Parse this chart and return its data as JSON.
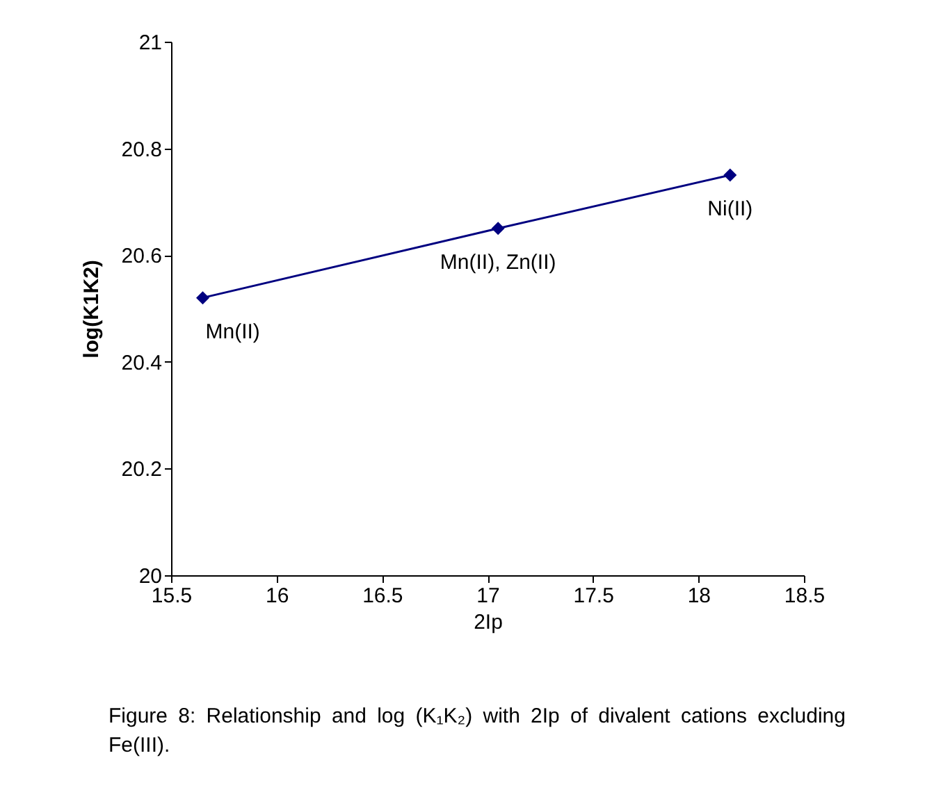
{
  "chart_data": {
    "type": "line",
    "xlabel": "2Ip",
    "ylabel": "log(K1K2)",
    "x": [
      15.65,
      17.05,
      18.15
    ],
    "series": [
      {
        "color": "#000080",
        "values": [
          20.52,
          20.65,
          20.75
        ]
      }
    ],
    "xlim": [
      15.5,
      18.5
    ],
    "xticks": [
      15.5,
      16,
      16.5,
      17,
      17.5,
      18,
      18.5
    ],
    "ylim": [
      20,
      21
    ],
    "yticks": [
      20,
      20.2,
      20.4,
      20.6,
      20.8,
      21
    ],
    "grid": false,
    "marker": "diamond",
    "line_style": "solid",
    "annotations": [
      {
        "text": "Mn(II)",
        "x": 15.65,
        "y": 20.52
      },
      {
        "text": "Mn(II), Zn(II)",
        "x": 17.05,
        "y": 20.65
      },
      {
        "text": "Ni(II)",
        "x": 18.15,
        "y": 20.75
      },
      "Figure 8: Relationship and log (K₁K₂) with 2Ip of divalent cations excluding Fe(III)."
    ]
  }
}
